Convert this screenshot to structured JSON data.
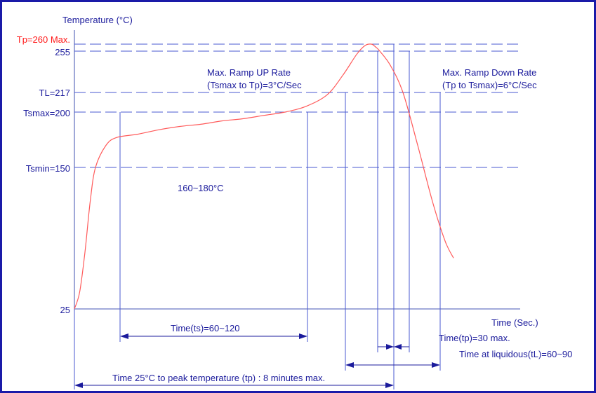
{
  "chart_data": {
    "type": "line",
    "title": "",
    "xlabel": "Time (Sec.)",
    "ylabel": "Temperature (°C)",
    "y_reference_labels": [
      {
        "value": 260,
        "label": "Tp=260 Max.",
        "color": "#ff1a1a"
      },
      {
        "value": 255,
        "label": "255",
        "color": "#1b1b9c"
      },
      {
        "value": 217,
        "label": "TL=217",
        "color": "#1b1b9c"
      },
      {
        "value": 200,
        "label": "Tsmax=200",
        "color": "#1b1b9c"
      },
      {
        "value": 150,
        "label": "Tsmin=150",
        "color": "#1b1b9c"
      },
      {
        "value": 25,
        "label": "25",
        "color": "#1b1b9c"
      }
    ],
    "series": [
      {
        "color": "#ff5a5a",
        "x": [
          0,
          5,
          10,
          15,
          20,
          30,
          40,
          60,
          80,
          100,
          120,
          140,
          160,
          180,
          200,
          220,
          240,
          255,
          268,
          276,
          282,
          286,
          290,
          300,
          312,
          326,
          340,
          352,
          360
        ],
        "y": [
          25,
          40,
          75,
          120,
          150,
          170,
          177,
          180,
          184,
          187,
          189,
          192,
          194,
          197,
          200,
          205,
          215,
          233,
          252,
          259,
          260,
          258,
          255,
          242,
          217,
          170,
          120,
          85,
          70
        ]
      }
    ],
    "annotations": [
      {
        "id": "soak_range",
        "text": "160~180°C"
      },
      {
        "id": "ramp_up",
        "text": [
          "Max. Ramp UP Rate",
          "(Tsmax to Tp)=3°C/Sec"
        ]
      },
      {
        "id": "ramp_down",
        "text": [
          "Max. Ramp Down Rate",
          "(Tp to Tsmax)=6°C/Sec"
        ]
      },
      {
        "id": "time_ts",
        "text": "Time(ts)=60~120"
      },
      {
        "id": "time_tp",
        "text": "Time(tp)=30 max."
      },
      {
        "id": "time_liquidous",
        "text": "Time at liquidous(tL)=60~90"
      },
      {
        "id": "time_to_peak",
        "text": "Time 25°C to peak temperature (tp) : 8 minutes max."
      }
    ],
    "grid": false,
    "legend": "none"
  }
}
